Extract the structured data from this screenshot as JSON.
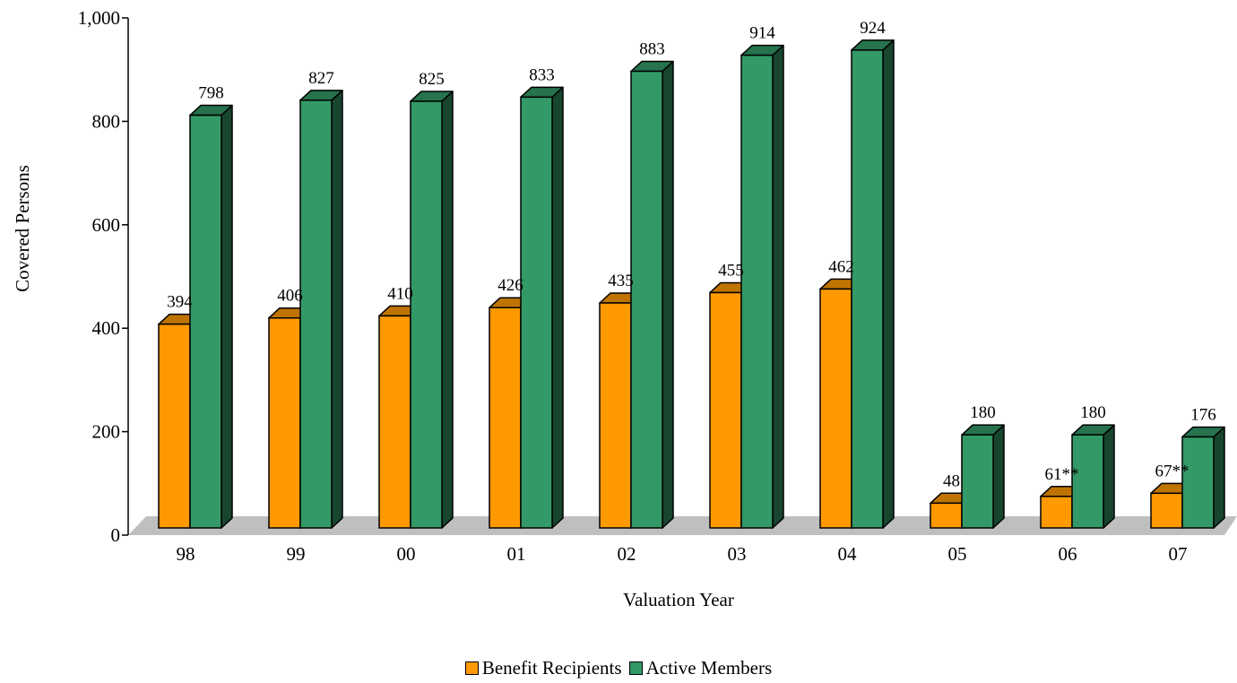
{
  "chart_data": {
    "type": "bar",
    "title": "",
    "xlabel": "Valuation Year",
    "ylabel": "Covered Persons",
    "ylim": [
      0,
      1000
    ],
    "yticks": [
      0,
      200,
      400,
      600,
      800,
      1000
    ],
    "ytick_labels": [
      "0",
      "200",
      "400",
      "600",
      "800",
      "1,000"
    ],
    "categories": [
      "98",
      "99",
      "00",
      "01",
      "02",
      "03",
      "04",
      "05",
      "06",
      "07"
    ],
    "series": [
      {
        "name": "Benefit Recipients",
        "color": "#FF9900",
        "values": [
          394,
          406,
          410,
          426,
          435,
          455,
          462,
          48,
          61,
          67
        ],
        "labels": [
          "394",
          "406",
          "410",
          "426",
          "435",
          "455",
          "462",
          "48",
          "61**",
          "67**"
        ]
      },
      {
        "name": "Active Members",
        "color": "#339966",
        "values": [
          798,
          827,
          825,
          833,
          883,
          914,
          924,
          180,
          180,
          176
        ],
        "labels": [
          "798",
          "827",
          "825",
          "833",
          "883",
          "914",
          "924",
          "180",
          "180",
          "176"
        ]
      }
    ],
    "grid": false,
    "legend_position": "bottom-center"
  }
}
